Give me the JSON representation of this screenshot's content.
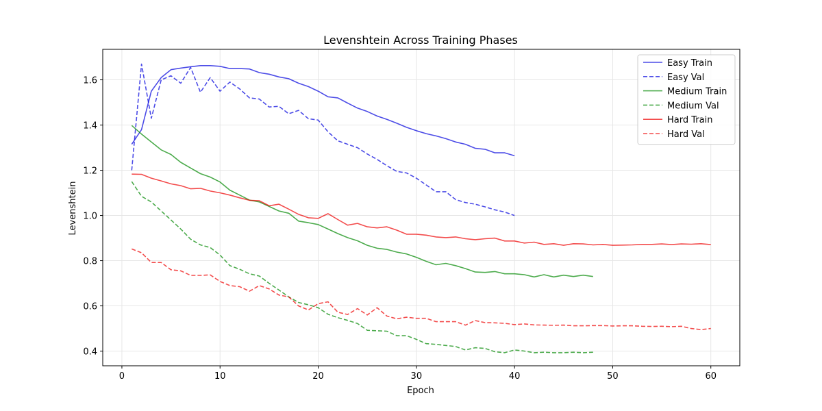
{
  "chart_data": {
    "type": "line",
    "title": "Levenshtein Across Training Phases",
    "xlabel": "Epoch",
    "ylabel": "Levenshtein",
    "xlim": [
      -1.95,
      62.95
    ],
    "ylim": [
      0.335,
      1.735
    ],
    "x_ticks": [
      0,
      10,
      20,
      30,
      40,
      50,
      60
    ],
    "y_ticks": [
      0.4,
      0.6,
      0.8,
      1.0,
      1.2,
      1.4,
      1.6
    ],
    "x_tick_labels": [
      "0",
      "10",
      "20",
      "30",
      "40",
      "50",
      "60"
    ],
    "y_tick_labels": [
      "0.4",
      "0.6",
      "0.8",
      "1.0",
      "1.2",
      "1.4",
      "1.6"
    ],
    "grid": true,
    "legend_position": "upper-right",
    "series": [
      {
        "name": "Easy Train",
        "color": "#0000dd",
        "style": "solid",
        "x": [
          1,
          2,
          3,
          4,
          5,
          6,
          7,
          8,
          9,
          10,
          11,
          12,
          13,
          14,
          15,
          16,
          17,
          18,
          19,
          20,
          21,
          22,
          23,
          24,
          25,
          26,
          27,
          28,
          29,
          30,
          31,
          32,
          33,
          34,
          35,
          36,
          37,
          38,
          39,
          40
        ],
        "values": [
          1.315,
          1.38,
          1.55,
          1.61,
          1.645,
          1.652,
          1.658,
          1.663,
          1.663,
          1.66,
          1.65,
          1.65,
          1.648,
          1.632,
          1.625,
          1.613,
          1.605,
          1.585,
          1.57,
          1.55,
          1.525,
          1.52,
          1.497,
          1.475,
          1.46,
          1.44,
          1.425,
          1.408,
          1.39,
          1.375,
          1.362,
          1.352,
          1.34,
          1.325,
          1.315,
          1.297,
          1.293,
          1.277,
          1.277,
          1.264
        ]
      },
      {
        "name": "Easy Val",
        "color": "#0000dd",
        "style": "dashed",
        "x": [
          1,
          2,
          3,
          4,
          5,
          6,
          7,
          8,
          9,
          10,
          11,
          12,
          13,
          14,
          15,
          16,
          17,
          18,
          19,
          20,
          21,
          22,
          23,
          24,
          25,
          26,
          27,
          28,
          29,
          30,
          31,
          32,
          33,
          34,
          35,
          36,
          37,
          38,
          39,
          40
        ],
        "values": [
          1.2,
          1.67,
          1.43,
          1.6,
          1.618,
          1.585,
          1.655,
          1.545,
          1.61,
          1.55,
          1.59,
          1.56,
          1.52,
          1.515,
          1.48,
          1.483,
          1.45,
          1.465,
          1.428,
          1.422,
          1.37,
          1.33,
          1.315,
          1.3,
          1.272,
          1.248,
          1.22,
          1.195,
          1.188,
          1.165,
          1.135,
          1.105,
          1.105,
          1.07,
          1.057,
          1.05,
          1.038,
          1.025,
          1.015,
          1.0
        ]
      },
      {
        "name": "Medium Train",
        "color": "#008800",
        "style": "solid",
        "x": [
          1,
          2,
          3,
          4,
          5,
          6,
          7,
          8,
          9,
          10,
          11,
          12,
          13,
          14,
          15,
          16,
          17,
          18,
          19,
          20,
          21,
          22,
          23,
          24,
          25,
          26,
          27,
          28,
          29,
          30,
          31,
          32,
          33,
          34,
          35,
          36,
          37,
          38,
          39,
          40,
          41,
          42,
          43,
          44,
          45,
          46,
          47,
          48
        ],
        "values": [
          1.398,
          1.36,
          1.325,
          1.29,
          1.27,
          1.235,
          1.21,
          1.185,
          1.17,
          1.148,
          1.112,
          1.09,
          1.068,
          1.06,
          1.04,
          1.02,
          1.01,
          0.975,
          0.968,
          0.96,
          0.94,
          0.92,
          0.902,
          0.888,
          0.868,
          0.855,
          0.85,
          0.838,
          0.83,
          0.815,
          0.797,
          0.782,
          0.788,
          0.778,
          0.765,
          0.75,
          0.748,
          0.752,
          0.742,
          0.742,
          0.738,
          0.728,
          0.738,
          0.728,
          0.736,
          0.73,
          0.736,
          0.73
        ]
      },
      {
        "name": "Medium Val",
        "color": "#008800",
        "style": "dashed",
        "x": [
          1,
          2,
          3,
          4,
          5,
          6,
          7,
          8,
          9,
          10,
          11,
          12,
          13,
          14,
          15,
          16,
          17,
          18,
          19,
          20,
          21,
          22,
          23,
          24,
          25,
          26,
          27,
          28,
          29,
          30,
          31,
          32,
          33,
          34,
          35,
          36,
          37,
          38,
          39,
          40,
          41,
          42,
          43,
          44,
          45,
          46,
          47,
          48
        ],
        "values": [
          1.15,
          1.085,
          1.06,
          1.02,
          0.98,
          0.94,
          0.895,
          0.87,
          0.858,
          0.825,
          0.778,
          0.762,
          0.742,
          0.732,
          0.7,
          0.67,
          0.64,
          0.615,
          0.605,
          0.592,
          0.563,
          0.548,
          0.536,
          0.522,
          0.492,
          0.49,
          0.488,
          0.468,
          0.468,
          0.452,
          0.433,
          0.43,
          0.425,
          0.42,
          0.405,
          0.415,
          0.412,
          0.397,
          0.393,
          0.405,
          0.4,
          0.393,
          0.395,
          0.393,
          0.393,
          0.395,
          0.393,
          0.395
        ]
      },
      {
        "name": "Hard Train",
        "color": "#ee0000",
        "style": "solid",
        "x": [
          1,
          2,
          3,
          4,
          5,
          6,
          7,
          8,
          9,
          10,
          11,
          12,
          13,
          14,
          15,
          16,
          17,
          18,
          19,
          20,
          21,
          22,
          23,
          24,
          25,
          26,
          27,
          28,
          29,
          30,
          31,
          32,
          33,
          34,
          35,
          36,
          37,
          38,
          39,
          40,
          41,
          42,
          43,
          44,
          45,
          46,
          47,
          48,
          49,
          50,
          51,
          52,
          53,
          54,
          55,
          56,
          57,
          58,
          59,
          60
        ],
        "values": [
          1.183,
          1.182,
          1.165,
          1.153,
          1.14,
          1.132,
          1.118,
          1.12,
          1.108,
          1.1,
          1.09,
          1.078,
          1.067,
          1.065,
          1.043,
          1.05,
          1.028,
          1.005,
          0.99,
          0.987,
          1.008,
          0.982,
          0.957,
          0.965,
          0.95,
          0.945,
          0.95,
          0.935,
          0.917,
          0.917,
          0.913,
          0.905,
          0.902,
          0.905,
          0.897,
          0.893,
          0.897,
          0.9,
          0.887,
          0.887,
          0.878,
          0.882,
          0.872,
          0.875,
          0.868,
          0.875,
          0.874,
          0.87,
          0.872,
          0.868,
          0.869,
          0.87,
          0.872,
          0.872,
          0.874,
          0.871,
          0.874,
          0.873,
          0.875,
          0.871
        ]
      },
      {
        "name": "Hard Val",
        "color": "#ee0000",
        "style": "dashed",
        "x": [
          1,
          2,
          3,
          4,
          5,
          6,
          7,
          8,
          9,
          10,
          11,
          12,
          13,
          14,
          15,
          16,
          17,
          18,
          19,
          20,
          21,
          22,
          23,
          24,
          25,
          26,
          27,
          28,
          29,
          30,
          31,
          32,
          33,
          34,
          35,
          36,
          37,
          38,
          39,
          40,
          41,
          42,
          43,
          44,
          45,
          46,
          47,
          48,
          49,
          50,
          51,
          52,
          53,
          54,
          55,
          56,
          57,
          58,
          59,
          60
        ],
        "values": [
          0.852,
          0.835,
          0.792,
          0.792,
          0.76,
          0.755,
          0.735,
          0.735,
          0.737,
          0.708,
          0.69,
          0.685,
          0.665,
          0.69,
          0.675,
          0.648,
          0.64,
          0.6,
          0.582,
          0.61,
          0.618,
          0.572,
          0.562,
          0.588,
          0.56,
          0.592,
          0.555,
          0.543,
          0.55,
          0.545,
          0.545,
          0.53,
          0.53,
          0.53,
          0.515,
          0.535,
          0.526,
          0.525,
          0.523,
          0.517,
          0.52,
          0.516,
          0.515,
          0.514,
          0.515,
          0.512,
          0.512,
          0.513,
          0.513,
          0.511,
          0.512,
          0.512,
          0.51,
          0.509,
          0.51,
          0.508,
          0.51,
          0.5,
          0.495,
          0.5
        ]
      }
    ]
  }
}
